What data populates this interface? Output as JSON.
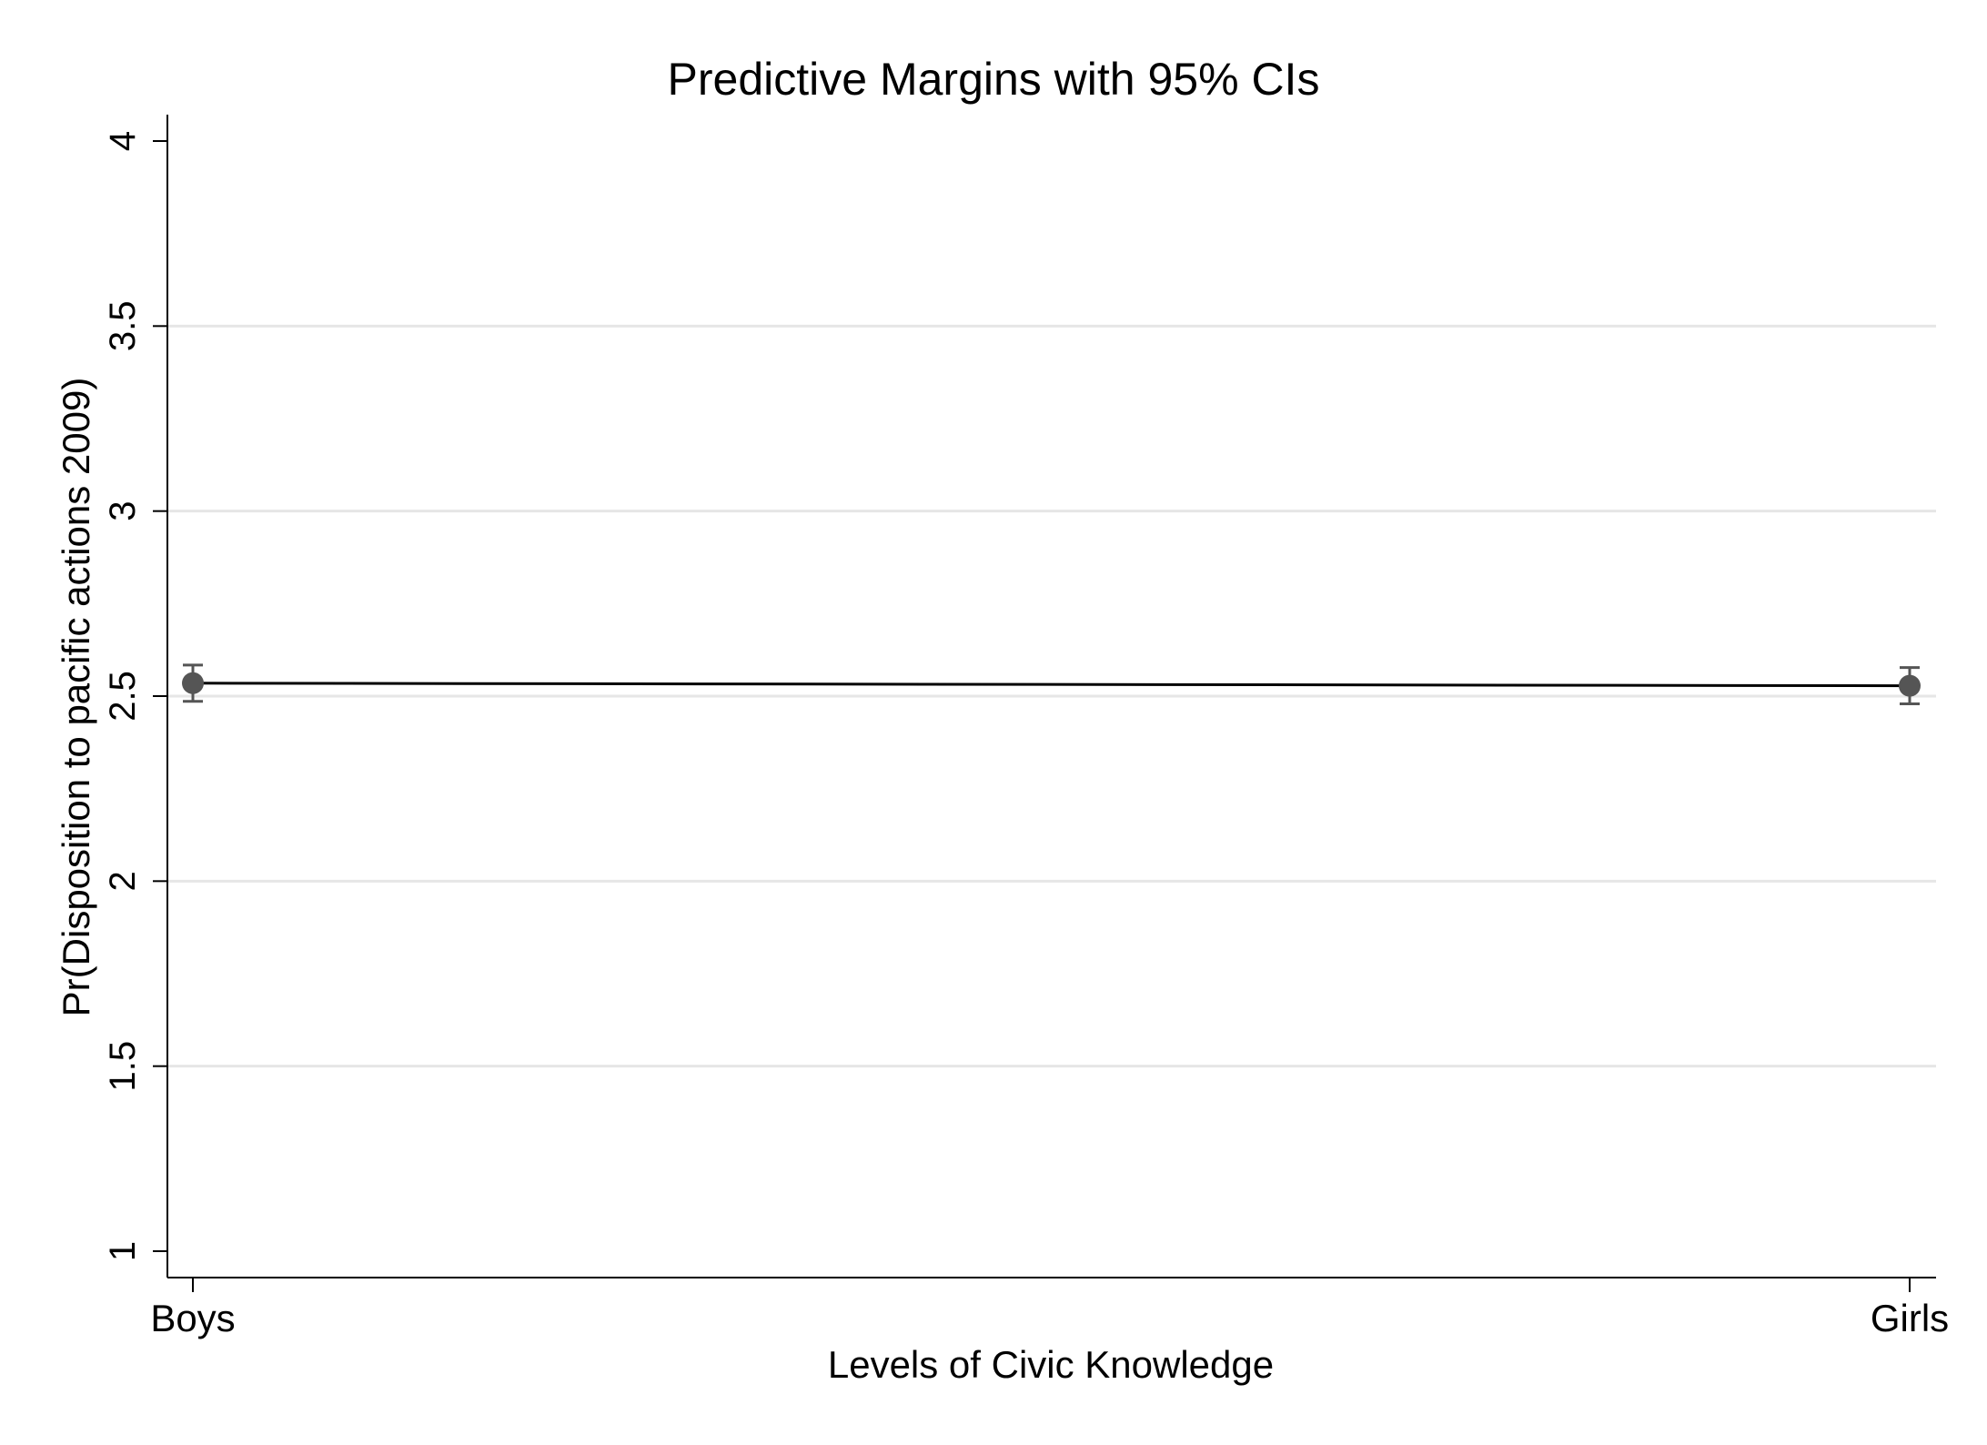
{
  "chart_data": {
    "type": "line",
    "title": "Predictive Margins with 95% CIs",
    "xlabel": "Levels of Civic Knowledge",
    "ylabel": "Pr(Disposition to pacific actions 2009)",
    "categories": [
      "Boys",
      "Girls"
    ],
    "series": [
      {
        "values": [
          2.535,
          2.528
        ],
        "ci_lower": [
          2.486,
          2.479
        ],
        "ci_upper": [
          2.584,
          2.577
        ]
      }
    ],
    "ylim": [
      1,
      4
    ],
    "yticks": [
      1,
      1.5,
      2,
      2.5,
      3,
      3.5,
      4
    ],
    "ytick_labels": [
      "1",
      "1.5",
      "2",
      "2.5",
      "3",
      "3.5",
      "4"
    ],
    "grid": true,
    "legend": "none",
    "colors": {
      "line": "#000000",
      "marker": "#555555",
      "errorbar": "#555555",
      "grid": "#e6e6e6",
      "axis": "#000000"
    }
  }
}
